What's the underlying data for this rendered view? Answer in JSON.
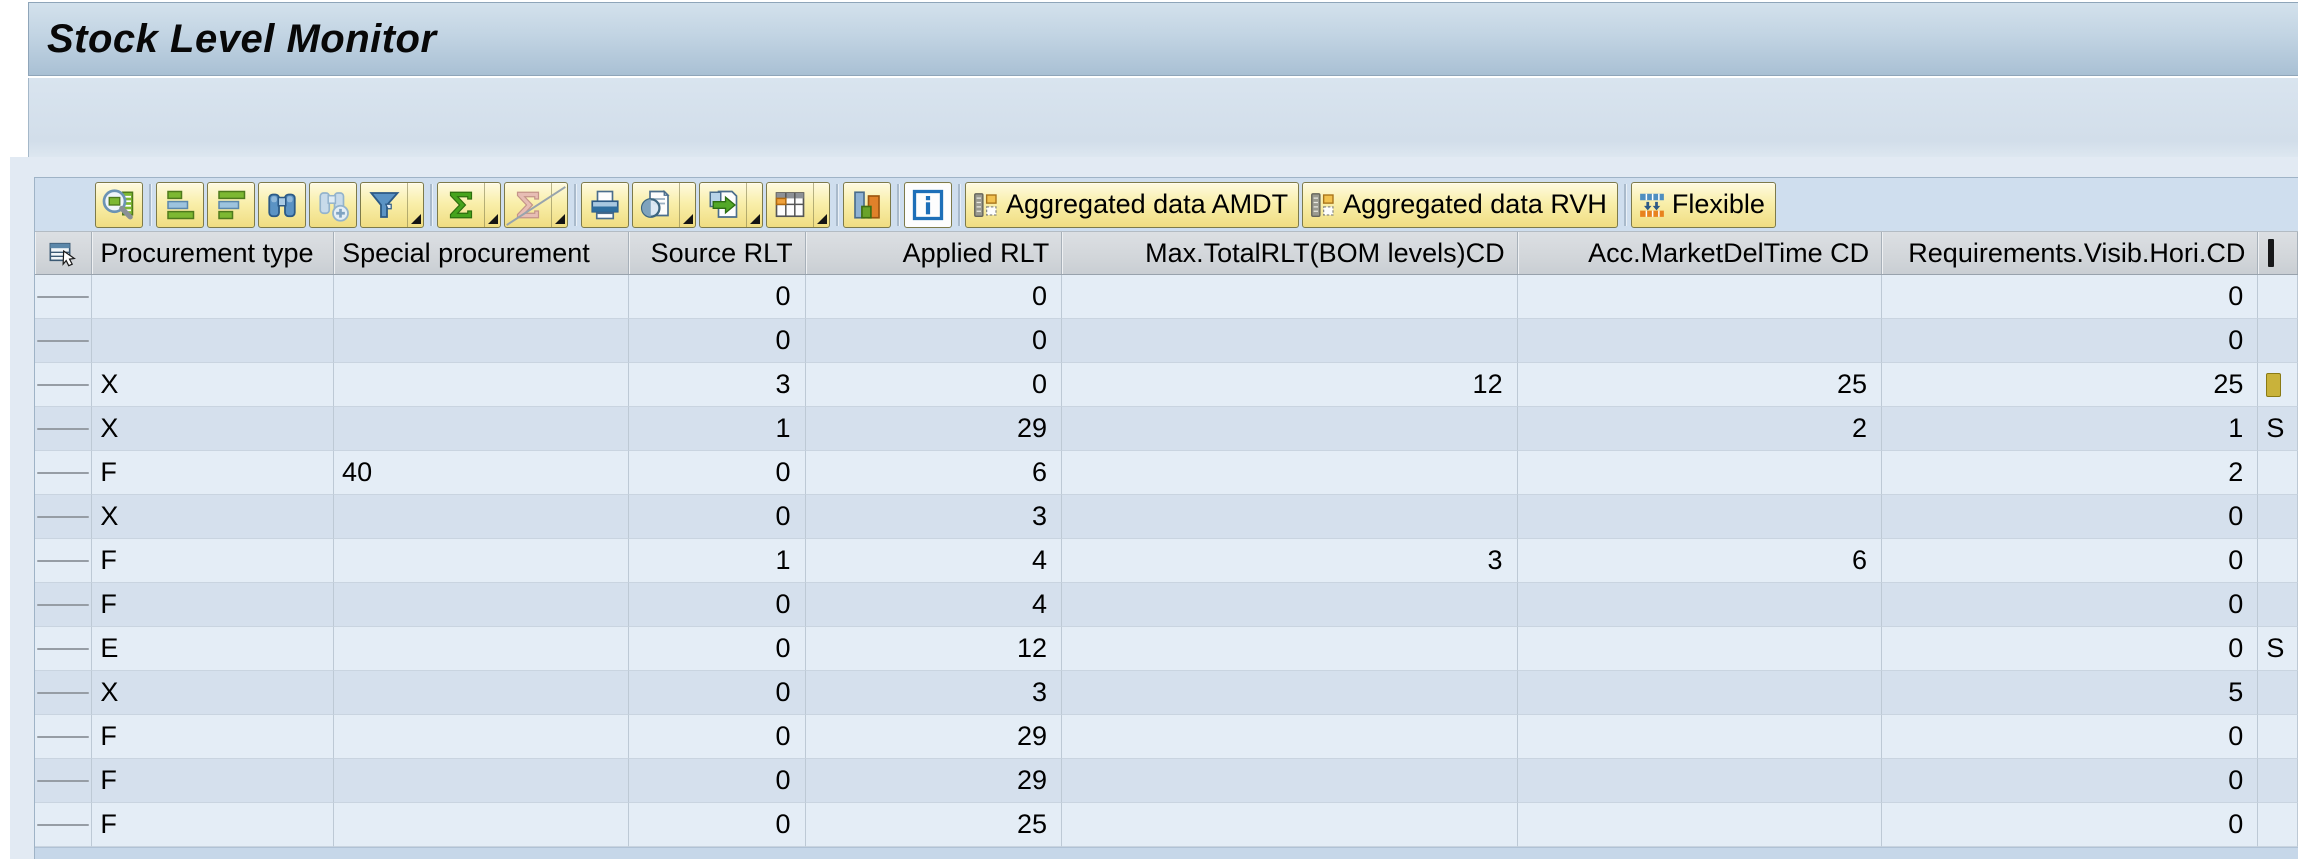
{
  "title": "Stock Level Monitor",
  "colors": {
    "title_band": "#aec4d8",
    "toolbar_button_yellow": "#f0dd82",
    "grid_toolbar_bg": "#cfdeee",
    "header_bg": "#d2d6da",
    "row_light": "#e4edf6",
    "row_dark": "#d5e0ed"
  },
  "toolbar": {
    "icons": [
      {
        "name": "details",
        "sep_after": true
      },
      {
        "name": "sort-ascending"
      },
      {
        "name": "sort-descending"
      },
      {
        "name": "find"
      },
      {
        "name": "find-next",
        "disabled": true
      },
      {
        "name": "filter",
        "dropdown": true,
        "sep_after": true
      },
      {
        "name": "sum",
        "dropdown": true
      },
      {
        "name": "subtotal",
        "dropdown": true,
        "disabled": true,
        "slashed": true,
        "sep_after": true
      },
      {
        "name": "print"
      },
      {
        "name": "print-preview",
        "dropdown": true
      },
      {
        "name": "export",
        "dropdown": true
      },
      {
        "name": "choose-layout",
        "dropdown": true,
        "sep_after": true
      },
      {
        "name": "graphic",
        "sep_after": true
      },
      {
        "name": "info",
        "white": true,
        "sep_after": true
      }
    ],
    "text_buttons": [
      {
        "label": "Aggregated data AMDT",
        "icon": "aggregated-data"
      },
      {
        "label": "Aggregated data RVH",
        "icon": "aggregated-data",
        "sep_after": true
      },
      {
        "label": "Flexible",
        "icon": "flexible-planning"
      }
    ]
  },
  "table": {
    "columns": [
      "Procurement type",
      "Special procurement",
      "Source RLT",
      "Applied RLT",
      "Max.TotalRLT(BOM levels)CD",
      "Acc.MarketDelTime CD",
      "Requirements.Visib.Hori.CD"
    ],
    "rows": [
      {
        "cells": [
          "",
          "",
          "0",
          "0",
          "",
          "",
          "0"
        ]
      },
      {
        "cells": [
          "",
          "",
          "0",
          "0",
          "",
          "",
          "0"
        ]
      },
      {
        "cells": [
          "X",
          "",
          "3",
          "0",
          "12",
          "25",
          "25"
        ]
      },
      {
        "cells": [
          "X",
          "",
          "1",
          "29",
          "",
          "2",
          "1"
        ]
      },
      {
        "cells": [
          "F",
          "40",
          "0",
          "6",
          "",
          "",
          "2"
        ]
      },
      {
        "cells": [
          "X",
          "",
          "0",
          "3",
          "",
          "",
          "0"
        ]
      },
      {
        "cells": [
          "F",
          "",
          "1",
          "4",
          "3",
          "6",
          "0"
        ]
      },
      {
        "cells": [
          "F",
          "",
          "0",
          "4",
          "",
          "",
          "0"
        ]
      },
      {
        "cells": [
          "E",
          "",
          "0",
          "12",
          "",
          "",
          "0"
        ]
      },
      {
        "cells": [
          "X",
          "",
          "0",
          "3",
          "",
          "",
          "5"
        ]
      },
      {
        "cells": [
          "F",
          "",
          "0",
          "29",
          "",
          "",
          "0"
        ]
      },
      {
        "cells": [
          "F",
          "",
          "0",
          "29",
          "",
          "",
          "0"
        ]
      },
      {
        "cells": [
          "F",
          "",
          "0",
          "25",
          "",
          "",
          "0"
        ]
      }
    ],
    "right_edge_partial": {
      "4": "S",
      "9": "S"
    },
    "right_edge_partial_icon_row": 3,
    "right_edge_header_fragment": true
  }
}
